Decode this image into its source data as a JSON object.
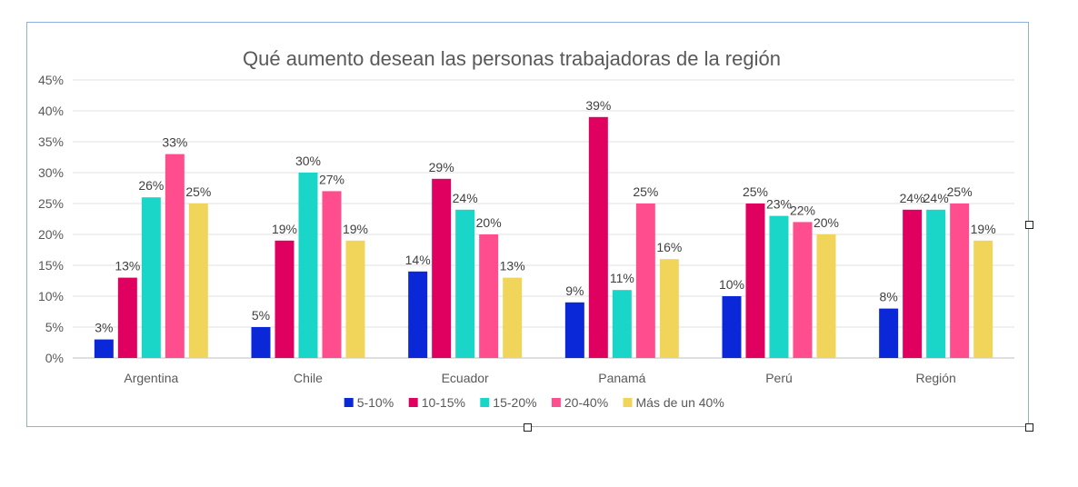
{
  "chart_data": {
    "type": "bar",
    "title": "Qué aumento desean las personas trabajadoras de la región",
    "categories": [
      "Argentina",
      "Chile",
      "Ecuador",
      "Panamá",
      "Perú",
      "Región"
    ],
    "series": [
      {
        "name": "5-10%",
        "color": "#0a28d8",
        "values": [
          3,
          5,
          14,
          9,
          10,
          8
        ]
      },
      {
        "name": "10-15%",
        "color": "#e0005f",
        "values": [
          13,
          19,
          29,
          39,
          25,
          24
        ]
      },
      {
        "name": "15-20%",
        "color": "#19d6c8",
        "values": [
          26,
          30,
          24,
          11,
          23,
          24
        ]
      },
      {
        "name": "20-40%",
        "color": "#ff4d8d",
        "values": [
          33,
          27,
          20,
          25,
          22,
          25
        ]
      },
      {
        "name": "Más de un 40%",
        "color": "#f0d55a",
        "values": [
          25,
          19,
          13,
          16,
          20,
          19
        ]
      }
    ],
    "ylim": [
      0,
      45
    ],
    "yticks": [
      0,
      5,
      10,
      15,
      20,
      25,
      30,
      35,
      40,
      45
    ],
    "value_suffix": "%",
    "grid": true,
    "legend_position": "bottom"
  }
}
